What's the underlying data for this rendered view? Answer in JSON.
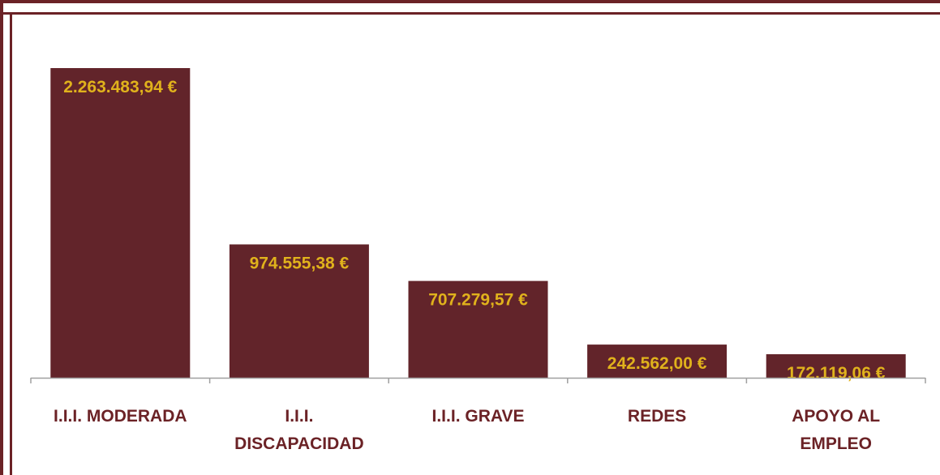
{
  "chart_data": {
    "type": "bar",
    "categories": [
      [
        "I.I.I. MODERADA"
      ],
      [
        "I.I.I.",
        "DISCAPACIDAD"
      ],
      [
        "I.I.I. GRAVE"
      ],
      [
        "REDES"
      ],
      [
        "APOYO AL",
        "EMPLEO"
      ]
    ],
    "values": [
      2263483.94,
      974555.38,
      707279.57,
      242562.0,
      172119.06
    ],
    "data_labels": [
      "2.263.483,94 €",
      "974.555,38 €",
      "707.279,57 €",
      "242.562,00 €",
      "172.119,06 €"
    ],
    "title": "",
    "xlabel": "",
    "ylabel": "",
    "ylim": [
      0,
      2300000
    ],
    "grid": false,
    "bar_color": "#62242a",
    "label_color": "#e0b21c",
    "category_color": "#6b2226"
  }
}
